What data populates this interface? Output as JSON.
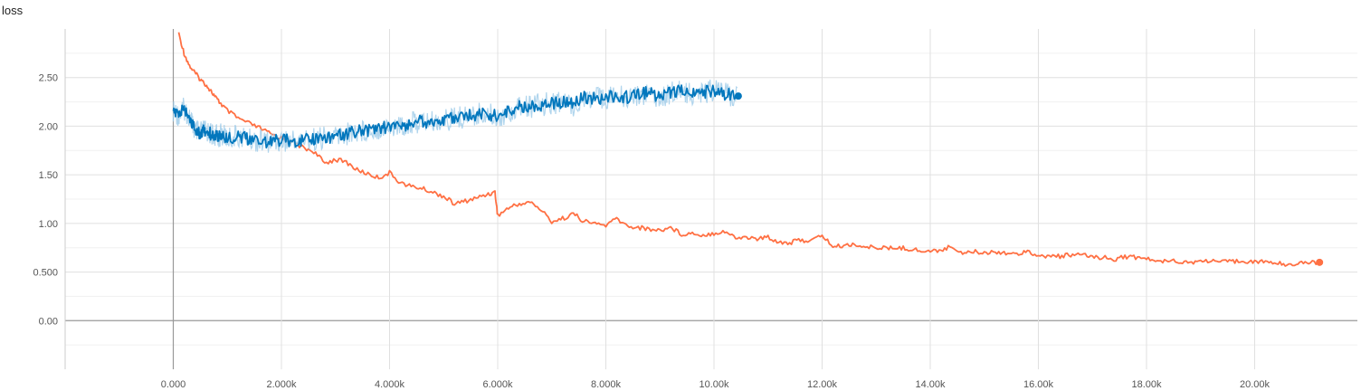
{
  "chart_data": {
    "type": "line",
    "title": "loss",
    "x_ticks": [
      "0.000",
      "2.000k",
      "4.000k",
      "6.000k",
      "8.000k",
      "10.00k",
      "12.00k",
      "14.00k",
      "16.00k",
      "18.00k",
      "20.00k"
    ],
    "y_ticks": [
      "0.00",
      "0.500",
      "1.00",
      "1.50",
      "2.00",
      "2.50"
    ],
    "xlim": [
      -2000,
      21900
    ],
    "ylim": [
      -0.5,
      3.0
    ],
    "grid": true,
    "series": [
      {
        "color": "#ff7043",
        "x": [
          100,
          200,
          300,
          400,
          500,
          600,
          700,
          800,
          900,
          1000,
          1200,
          1400,
          1600,
          1800,
          2000,
          2200,
          2400,
          2600,
          2800,
          3000,
          3200,
          3400,
          3600,
          3800,
          4000,
          4200,
          4400,
          4600,
          4800,
          5000,
          5200,
          5400,
          5600,
          5800,
          5950,
          6000,
          6200,
          6400,
          6600,
          6800,
          7000,
          7200,
          7400,
          7600,
          7800,
          8000,
          8200,
          8400,
          8600,
          8800,
          9000,
          9200,
          9400,
          9600,
          9800,
          10000,
          10200,
          10400,
          10600,
          10800,
          11000,
          11200,
          11400,
          11600,
          11800,
          12000,
          12200,
          12400,
          12600,
          12800,
          13000,
          13200,
          13400,
          13600,
          13800,
          14000,
          14200,
          14400,
          14600,
          14800,
          15000,
          15200,
          15400,
          15600,
          15800,
          16000,
          16200,
          16400,
          16600,
          16800,
          17000,
          17200,
          17400,
          17600,
          17800,
          18000,
          18200,
          18400,
          18600,
          18800,
          19000,
          19200,
          19400,
          19600,
          19800,
          20000,
          20200,
          20400,
          20600,
          20800,
          21000,
          21200
        ],
        "y": [
          2.95,
          2.75,
          2.62,
          2.55,
          2.48,
          2.43,
          2.36,
          2.28,
          2.22,
          2.16,
          2.08,
          2.03,
          1.98,
          1.92,
          1.88,
          1.84,
          1.78,
          1.74,
          1.62,
          1.66,
          1.63,
          1.55,
          1.51,
          1.47,
          1.52,
          1.42,
          1.38,
          1.36,
          1.32,
          1.28,
          1.2,
          1.23,
          1.26,
          1.3,
          1.32,
          1.08,
          1.16,
          1.2,
          1.22,
          1.14,
          1.02,
          1.05,
          1.1,
          1.02,
          1.0,
          0.98,
          1.05,
          0.97,
          0.96,
          0.94,
          0.93,
          0.96,
          0.89,
          0.9,
          0.88,
          0.9,
          0.92,
          0.85,
          0.86,
          0.84,
          0.86,
          0.81,
          0.8,
          0.83,
          0.82,
          0.88,
          0.76,
          0.77,
          0.79,
          0.75,
          0.76,
          0.74,
          0.75,
          0.74,
          0.72,
          0.71,
          0.73,
          0.76,
          0.7,
          0.71,
          0.7,
          0.71,
          0.7,
          0.68,
          0.73,
          0.65,
          0.67,
          0.66,
          0.68,
          0.67,
          0.66,
          0.65,
          0.63,
          0.66,
          0.65,
          0.64,
          0.6,
          0.63,
          0.61,
          0.6,
          0.61,
          0.62,
          0.6,
          0.61,
          0.62,
          0.6,
          0.61,
          0.59,
          0.58,
          0.59,
          0.6,
          0.6
        ]
      },
      {
        "color": "#0277bd",
        "x": [
          0,
          100,
          200,
          300,
          400,
          500,
          600,
          700,
          800,
          900,
          1000,
          1200,
          1400,
          1600,
          1800,
          2000,
          2200,
          2400,
          2600,
          2800,
          3000,
          3200,
          3400,
          3600,
          3800,
          4000,
          4200,
          4400,
          4600,
          4800,
          5000,
          5200,
          5400,
          5600,
          5800,
          6000,
          6200,
          6400,
          6600,
          6800,
          7000,
          7200,
          7400,
          7600,
          7800,
          8000,
          8200,
          8400,
          8600,
          8800,
          9000,
          9200,
          9400,
          9600,
          9800,
          10000,
          10200,
          10450
        ],
        "y": [
          2.15,
          2.12,
          2.18,
          2.1,
          1.95,
          1.93,
          1.96,
          1.92,
          1.9,
          1.91,
          1.88,
          1.9,
          1.86,
          1.85,
          1.84,
          1.86,
          1.85,
          1.86,
          1.87,
          1.88,
          1.9,
          1.92,
          1.95,
          1.96,
          1.98,
          1.99,
          2.0,
          2.03,
          2.05,
          2.04,
          2.06,
          2.08,
          2.1,
          2.12,
          2.13,
          2.1,
          2.15,
          2.2,
          2.2,
          2.22,
          2.24,
          2.25,
          2.22,
          2.3,
          2.28,
          2.3,
          2.31,
          2.3,
          2.32,
          2.35,
          2.3,
          2.34,
          2.36,
          2.32,
          2.35,
          2.37,
          2.33,
          2.31
        ]
      }
    ]
  }
}
